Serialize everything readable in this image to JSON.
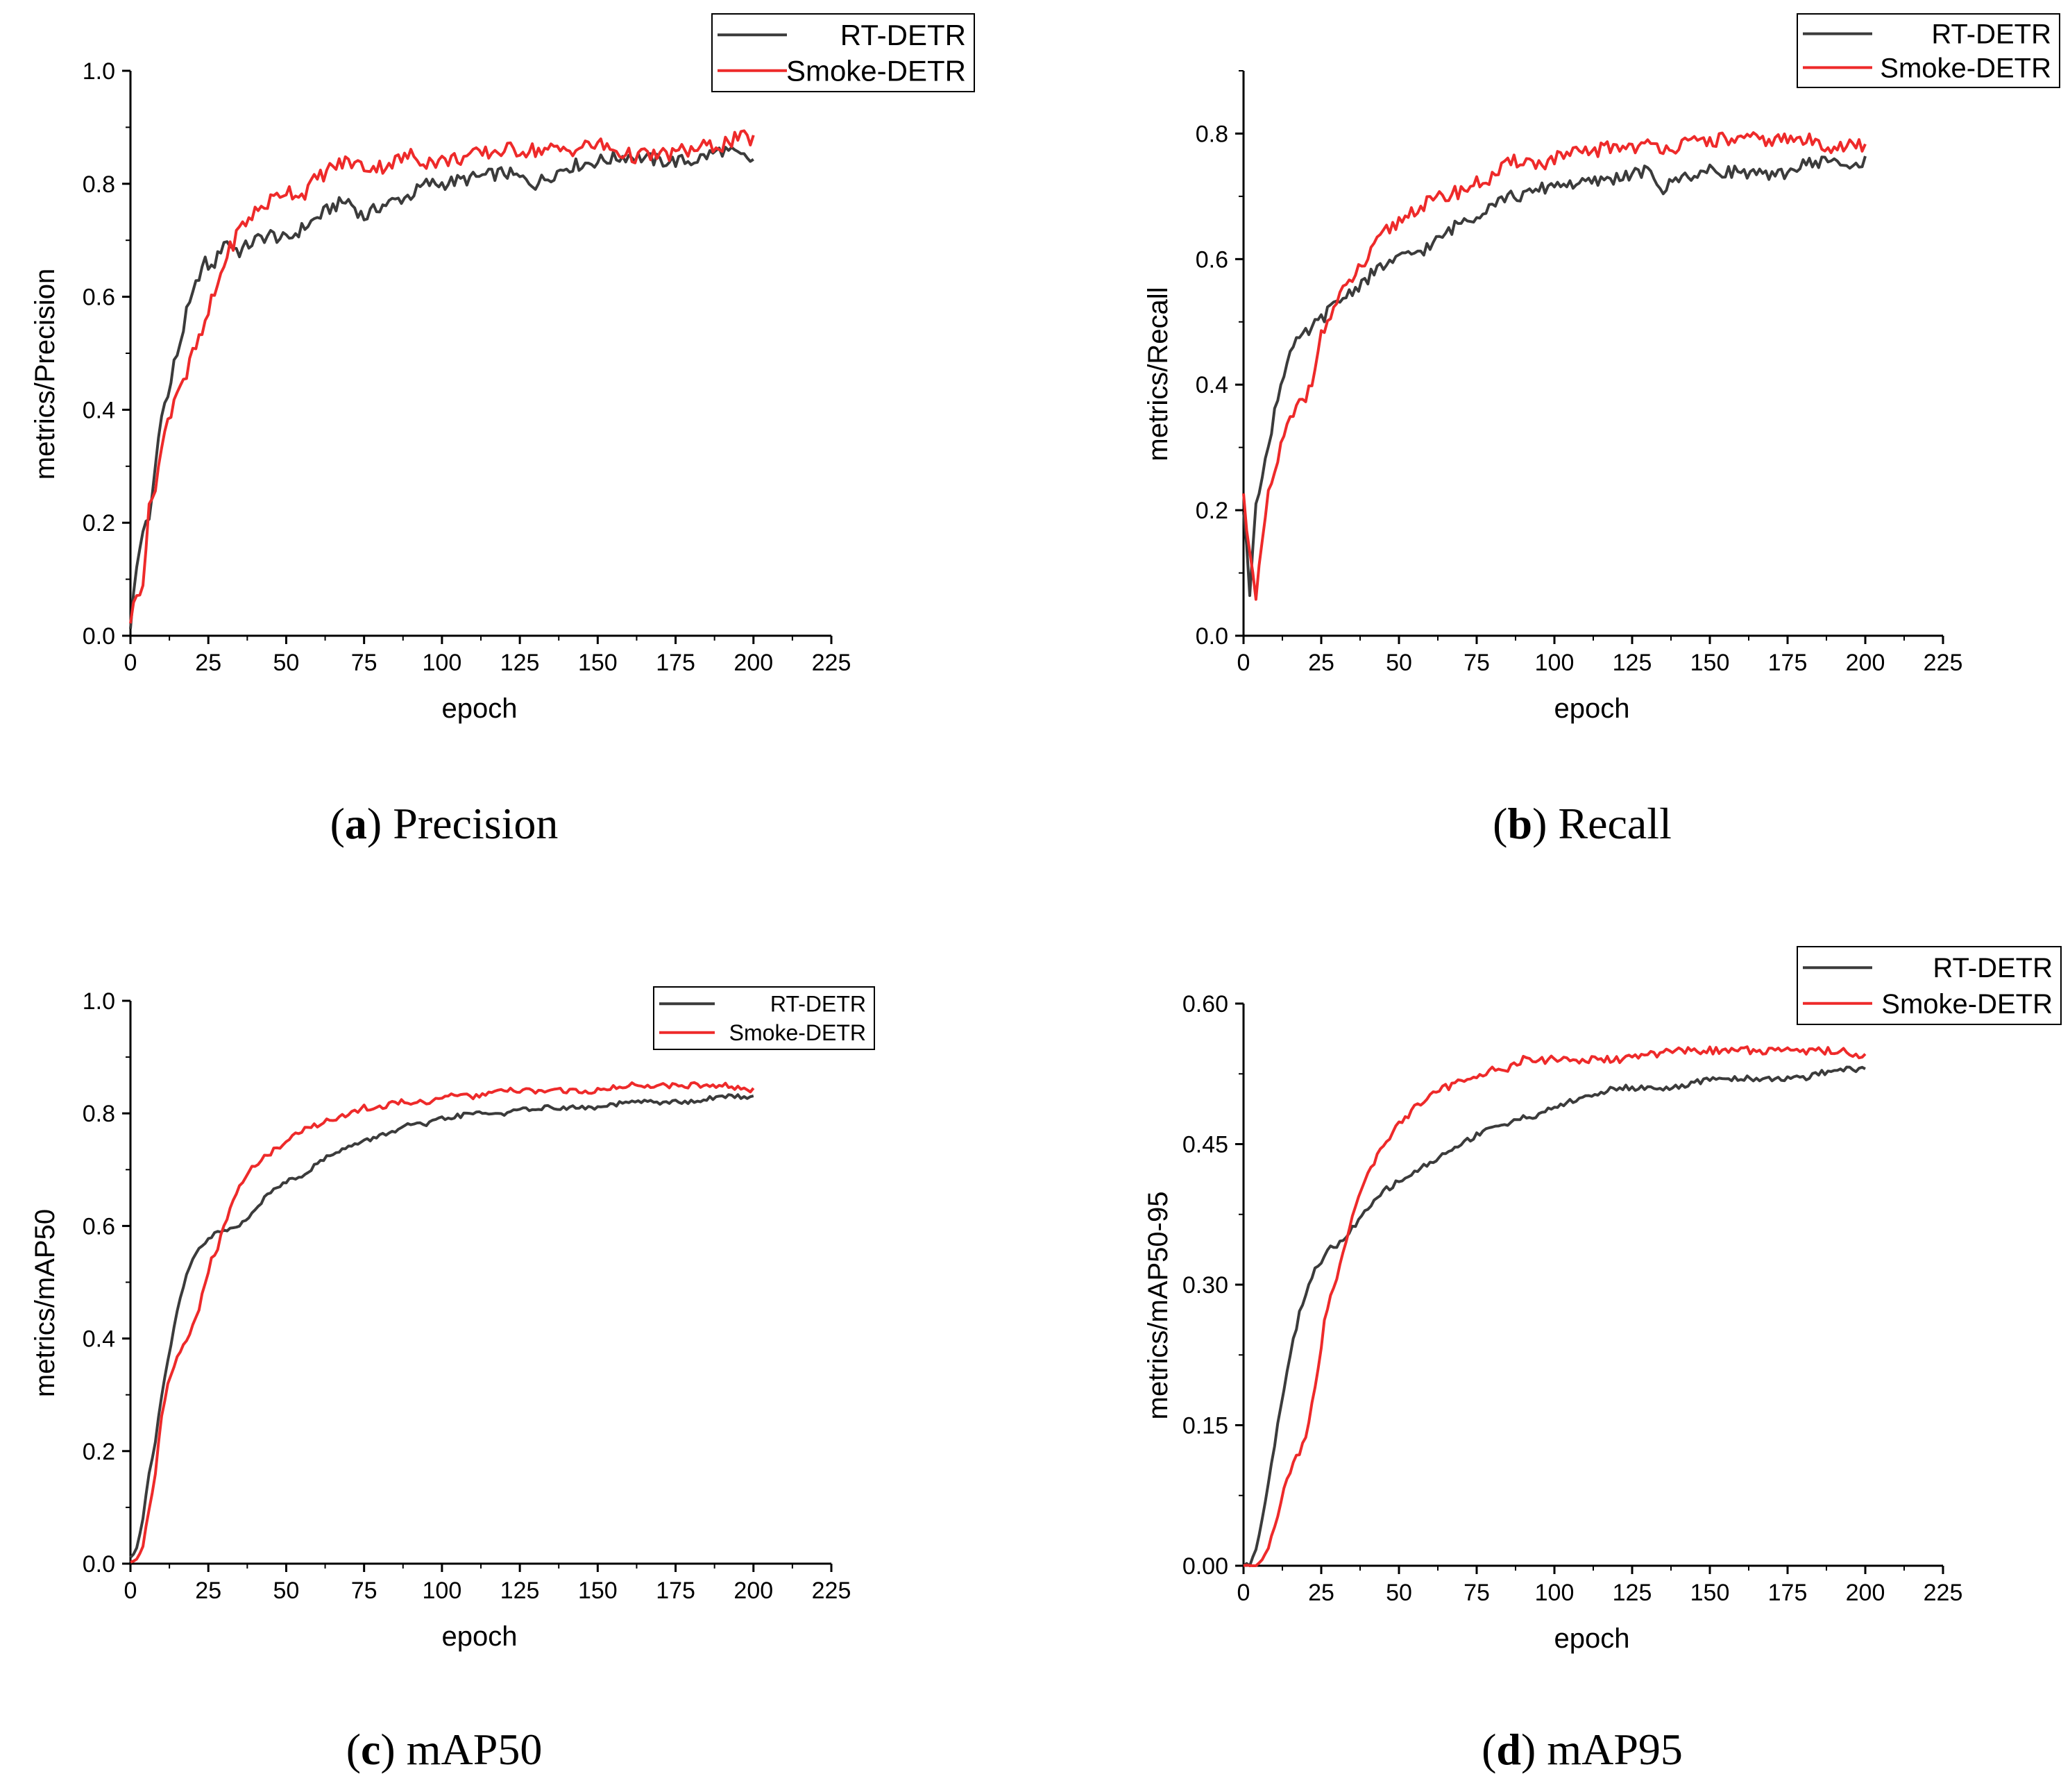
{
  "colors": {
    "rt_detr": "#3b3b3b",
    "smoke_detr": "#ee2a2a"
  },
  "chart_data": [
    {
      "id": "a",
      "type": "line",
      "caption_letter": "a",
      "caption_text": "Precision",
      "xlabel": "epoch",
      "ylabel": "metrics/Precision",
      "xlim": [
        0,
        225
      ],
      "ylim": [
        0,
        1.0
      ],
      "xticks": [
        "0",
        "25",
        "50",
        "75",
        "100",
        "125",
        "150",
        "175",
        "200",
        "225"
      ],
      "yticks": [
        "0.0",
        "0.2",
        "0.4",
        "0.6",
        "0.8",
        "1.0"
      ],
      "legend": "top-right",
      "series": [
        {
          "name": "RT-DETR",
          "color": "#3b3b3b",
          "amp": 0.012,
          "x": [
            0,
            2,
            4,
            6,
            8,
            10,
            12,
            14,
            16,
            18,
            20,
            22,
            24,
            26,
            28,
            30,
            35,
            40,
            45,
            50,
            55,
            60,
            65,
            70,
            75,
            80,
            85,
            90,
            95,
            100,
            110,
            120,
            130,
            140,
            150,
            160,
            170,
            180,
            190,
            195,
            200
          ],
          "y": [
            0.02,
            0.12,
            0.19,
            0.2,
            0.3,
            0.4,
            0.42,
            0.48,
            0.52,
            0.57,
            0.6,
            0.64,
            0.66,
            0.65,
            0.67,
            0.7,
            0.68,
            0.7,
            0.71,
            0.7,
            0.72,
            0.74,
            0.76,
            0.77,
            0.74,
            0.76,
            0.77,
            0.78,
            0.8,
            0.8,
            0.81,
            0.82,
            0.8,
            0.83,
            0.84,
            0.85,
            0.84,
            0.84,
            0.86,
            0.85,
            0.84
          ]
        },
        {
          "name": "Smoke-DETR",
          "color": "#ee2a2a",
          "amp": 0.014,
          "x": [
            0,
            2,
            4,
            6,
            8,
            10,
            12,
            14,
            16,
            18,
            20,
            22,
            24,
            26,
            28,
            30,
            35,
            40,
            45,
            50,
            55,
            60,
            65,
            70,
            75,
            80,
            85,
            90,
            95,
            100,
            110,
            120,
            130,
            140,
            150,
            160,
            170,
            180,
            190,
            195,
            200
          ],
          "y": [
            0.03,
            0.07,
            0.1,
            0.22,
            0.27,
            0.33,
            0.38,
            0.42,
            0.45,
            0.46,
            0.5,
            0.52,
            0.55,
            0.59,
            0.62,
            0.66,
            0.72,
            0.75,
            0.77,
            0.79,
            0.78,
            0.81,
            0.83,
            0.84,
            0.83,
            0.83,
            0.84,
            0.85,
            0.84,
            0.84,
            0.85,
            0.86,
            0.86,
            0.86,
            0.87,
            0.85,
            0.85,
            0.86,
            0.87,
            0.88,
            0.88
          ]
        }
      ]
    },
    {
      "id": "b",
      "type": "line",
      "caption_letter": "b",
      "caption_text": "Recall",
      "xlabel": "epoch",
      "ylabel": "metrics/Recall",
      "xlim": [
        0,
        225
      ],
      "ylim": [
        0,
        0.9
      ],
      "xticks": [
        "0",
        "25",
        "50",
        "75",
        "100",
        "125",
        "150",
        "175",
        "200",
        "225"
      ],
      "yticks": [
        "0.0",
        "0.2",
        "0.4",
        "0.6",
        "0.8"
      ],
      "legend": "top-right",
      "series": [
        {
          "name": "RT-DETR",
          "color": "#3b3b3b",
          "amp": 0.01,
          "x": [
            0,
            2,
            4,
            6,
            8,
            10,
            12,
            14,
            16,
            18,
            20,
            22,
            24,
            26,
            28,
            30,
            35,
            40,
            45,
            50,
            55,
            60,
            65,
            70,
            75,
            80,
            85,
            90,
            95,
            100,
            110,
            120,
            130,
            135,
            140,
            150,
            160,
            170,
            180,
            190,
            195,
            200
          ],
          "y": [
            0.2,
            0.07,
            0.22,
            0.25,
            0.3,
            0.36,
            0.4,
            0.44,
            0.46,
            0.47,
            0.48,
            0.49,
            0.5,
            0.51,
            0.52,
            0.53,
            0.55,
            0.57,
            0.59,
            0.6,
            0.61,
            0.62,
            0.64,
            0.66,
            0.67,
            0.69,
            0.7,
            0.7,
            0.71,
            0.72,
            0.72,
            0.73,
            0.74,
            0.71,
            0.73,
            0.74,
            0.74,
            0.73,
            0.75,
            0.76,
            0.74,
            0.76
          ]
        },
        {
          "name": "Smoke-DETR",
          "color": "#ee2a2a",
          "amp": 0.012,
          "x": [
            0,
            2,
            4,
            6,
            8,
            10,
            12,
            14,
            16,
            18,
            20,
            22,
            24,
            26,
            28,
            30,
            35,
            40,
            45,
            50,
            55,
            60,
            65,
            70,
            75,
            80,
            85,
            90,
            95,
            100,
            110,
            120,
            130,
            140,
            150,
            160,
            170,
            180,
            190,
            195,
            200
          ],
          "y": [
            0.22,
            0.14,
            0.05,
            0.15,
            0.22,
            0.26,
            0.3,
            0.33,
            0.35,
            0.37,
            0.38,
            0.41,
            0.46,
            0.49,
            0.51,
            0.53,
            0.57,
            0.6,
            0.64,
            0.66,
            0.68,
            0.69,
            0.7,
            0.71,
            0.72,
            0.73,
            0.75,
            0.76,
            0.75,
            0.76,
            0.77,
            0.78,
            0.78,
            0.78,
            0.79,
            0.79,
            0.79,
            0.79,
            0.78,
            0.78,
            0.78
          ]
        }
      ]
    },
    {
      "id": "c",
      "type": "line",
      "caption_letter": "c",
      "caption_text": "mAP50",
      "xlabel": "epoch",
      "ylabel": "metrics/mAP50",
      "xlim": [
        0,
        225
      ],
      "ylim": [
        0,
        1.0
      ],
      "xticks": [
        "0",
        "25",
        "50",
        "75",
        "100",
        "125",
        "150",
        "175",
        "200",
        "225"
      ],
      "yticks": [
        "0.0",
        "0.2",
        "0.4",
        "0.6",
        "0.8",
        "1.0"
      ],
      "legend": "top-right",
      "series": [
        {
          "name": "RT-DETR",
          "color": "#3b3b3b",
          "amp": 0.004,
          "x": [
            0,
            2,
            4,
            6,
            8,
            10,
            12,
            14,
            16,
            18,
            20,
            22,
            24,
            26,
            28,
            30,
            35,
            40,
            45,
            50,
            55,
            60,
            65,
            70,
            75,
            80,
            85,
            90,
            95,
            100,
            110,
            120,
            130,
            140,
            150,
            160,
            170,
            180,
            190,
            200
          ],
          "y": [
            0.01,
            0.03,
            0.08,
            0.16,
            0.22,
            0.3,
            0.36,
            0.42,
            0.47,
            0.51,
            0.54,
            0.56,
            0.57,
            0.58,
            0.59,
            0.59,
            0.6,
            0.63,
            0.66,
            0.68,
            0.69,
            0.71,
            0.73,
            0.74,
            0.75,
            0.76,
            0.77,
            0.78,
            0.78,
            0.79,
            0.8,
            0.8,
            0.81,
            0.81,
            0.81,
            0.82,
            0.82,
            0.82,
            0.83,
            0.83
          ]
        },
        {
          "name": "Smoke-DETR",
          "color": "#ee2a2a",
          "amp": 0.005,
          "x": [
            0,
            2,
            4,
            6,
            8,
            10,
            12,
            14,
            16,
            18,
            20,
            22,
            24,
            26,
            28,
            30,
            35,
            40,
            45,
            50,
            55,
            60,
            65,
            70,
            75,
            80,
            85,
            90,
            95,
            100,
            110,
            120,
            130,
            140,
            150,
            160,
            170,
            180,
            190,
            200
          ],
          "y": [
            0.0,
            0.01,
            0.03,
            0.1,
            0.16,
            0.26,
            0.32,
            0.35,
            0.38,
            0.4,
            0.42,
            0.45,
            0.5,
            0.54,
            0.56,
            0.6,
            0.67,
            0.71,
            0.73,
            0.75,
            0.77,
            0.78,
            0.79,
            0.8,
            0.81,
            0.81,
            0.82,
            0.82,
            0.82,
            0.83,
            0.83,
            0.84,
            0.84,
            0.84,
            0.84,
            0.85,
            0.85,
            0.85,
            0.85,
            0.84
          ]
        }
      ]
    },
    {
      "id": "d",
      "type": "line",
      "caption_letter": "d",
      "caption_text": "mAP95",
      "xlabel": "epoch",
      "ylabel": "metrics/mAP50-95",
      "xlim": [
        0,
        225
      ],
      "ylim": [
        0,
        0.6
      ],
      "xticks": [
        "0",
        "25",
        "50",
        "75",
        "100",
        "125",
        "150",
        "175",
        "200",
        "225"
      ],
      "yticks": [
        "0.00",
        "0.15",
        "0.30",
        "0.45",
        "0.60"
      ],
      "legend": "top-right",
      "series": [
        {
          "name": "RT-DETR",
          "color": "#3b3b3b",
          "amp": 0.003,
          "x": [
            0,
            2,
            4,
            6,
            8,
            10,
            12,
            14,
            16,
            18,
            20,
            22,
            24,
            26,
            28,
            30,
            35,
            40,
            45,
            50,
            55,
            60,
            65,
            70,
            75,
            80,
            85,
            90,
            95,
            100,
            110,
            120,
            130,
            140,
            150,
            160,
            170,
            180,
            190,
            200
          ],
          "y": [
            0.0,
            0.0,
            0.02,
            0.05,
            0.09,
            0.13,
            0.17,
            0.21,
            0.24,
            0.27,
            0.29,
            0.31,
            0.32,
            0.33,
            0.34,
            0.34,
            0.36,
            0.38,
            0.4,
            0.41,
            0.42,
            0.43,
            0.44,
            0.45,
            0.46,
            0.47,
            0.47,
            0.48,
            0.48,
            0.49,
            0.5,
            0.51,
            0.51,
            0.51,
            0.52,
            0.52,
            0.52,
            0.52,
            0.53,
            0.53
          ]
        },
        {
          "name": "Smoke-DETR",
          "color": "#ee2a2a",
          "amp": 0.004,
          "x": [
            0,
            2,
            4,
            6,
            8,
            10,
            12,
            14,
            16,
            18,
            20,
            22,
            24,
            26,
            28,
            30,
            35,
            40,
            45,
            50,
            55,
            60,
            65,
            70,
            75,
            80,
            85,
            90,
            95,
            100,
            110,
            120,
            130,
            140,
            150,
            160,
            170,
            180,
            190,
            200
          ],
          "y": [
            0.0,
            0.0,
            0.0,
            0.01,
            0.02,
            0.04,
            0.07,
            0.09,
            0.11,
            0.12,
            0.14,
            0.17,
            0.21,
            0.26,
            0.29,
            0.31,
            0.37,
            0.42,
            0.45,
            0.47,
            0.49,
            0.5,
            0.51,
            0.52,
            0.52,
            0.53,
            0.53,
            0.54,
            0.54,
            0.54,
            0.54,
            0.54,
            0.545,
            0.55,
            0.55,
            0.55,
            0.55,
            0.55,
            0.55,
            0.545
          ]
        }
      ]
    }
  ]
}
